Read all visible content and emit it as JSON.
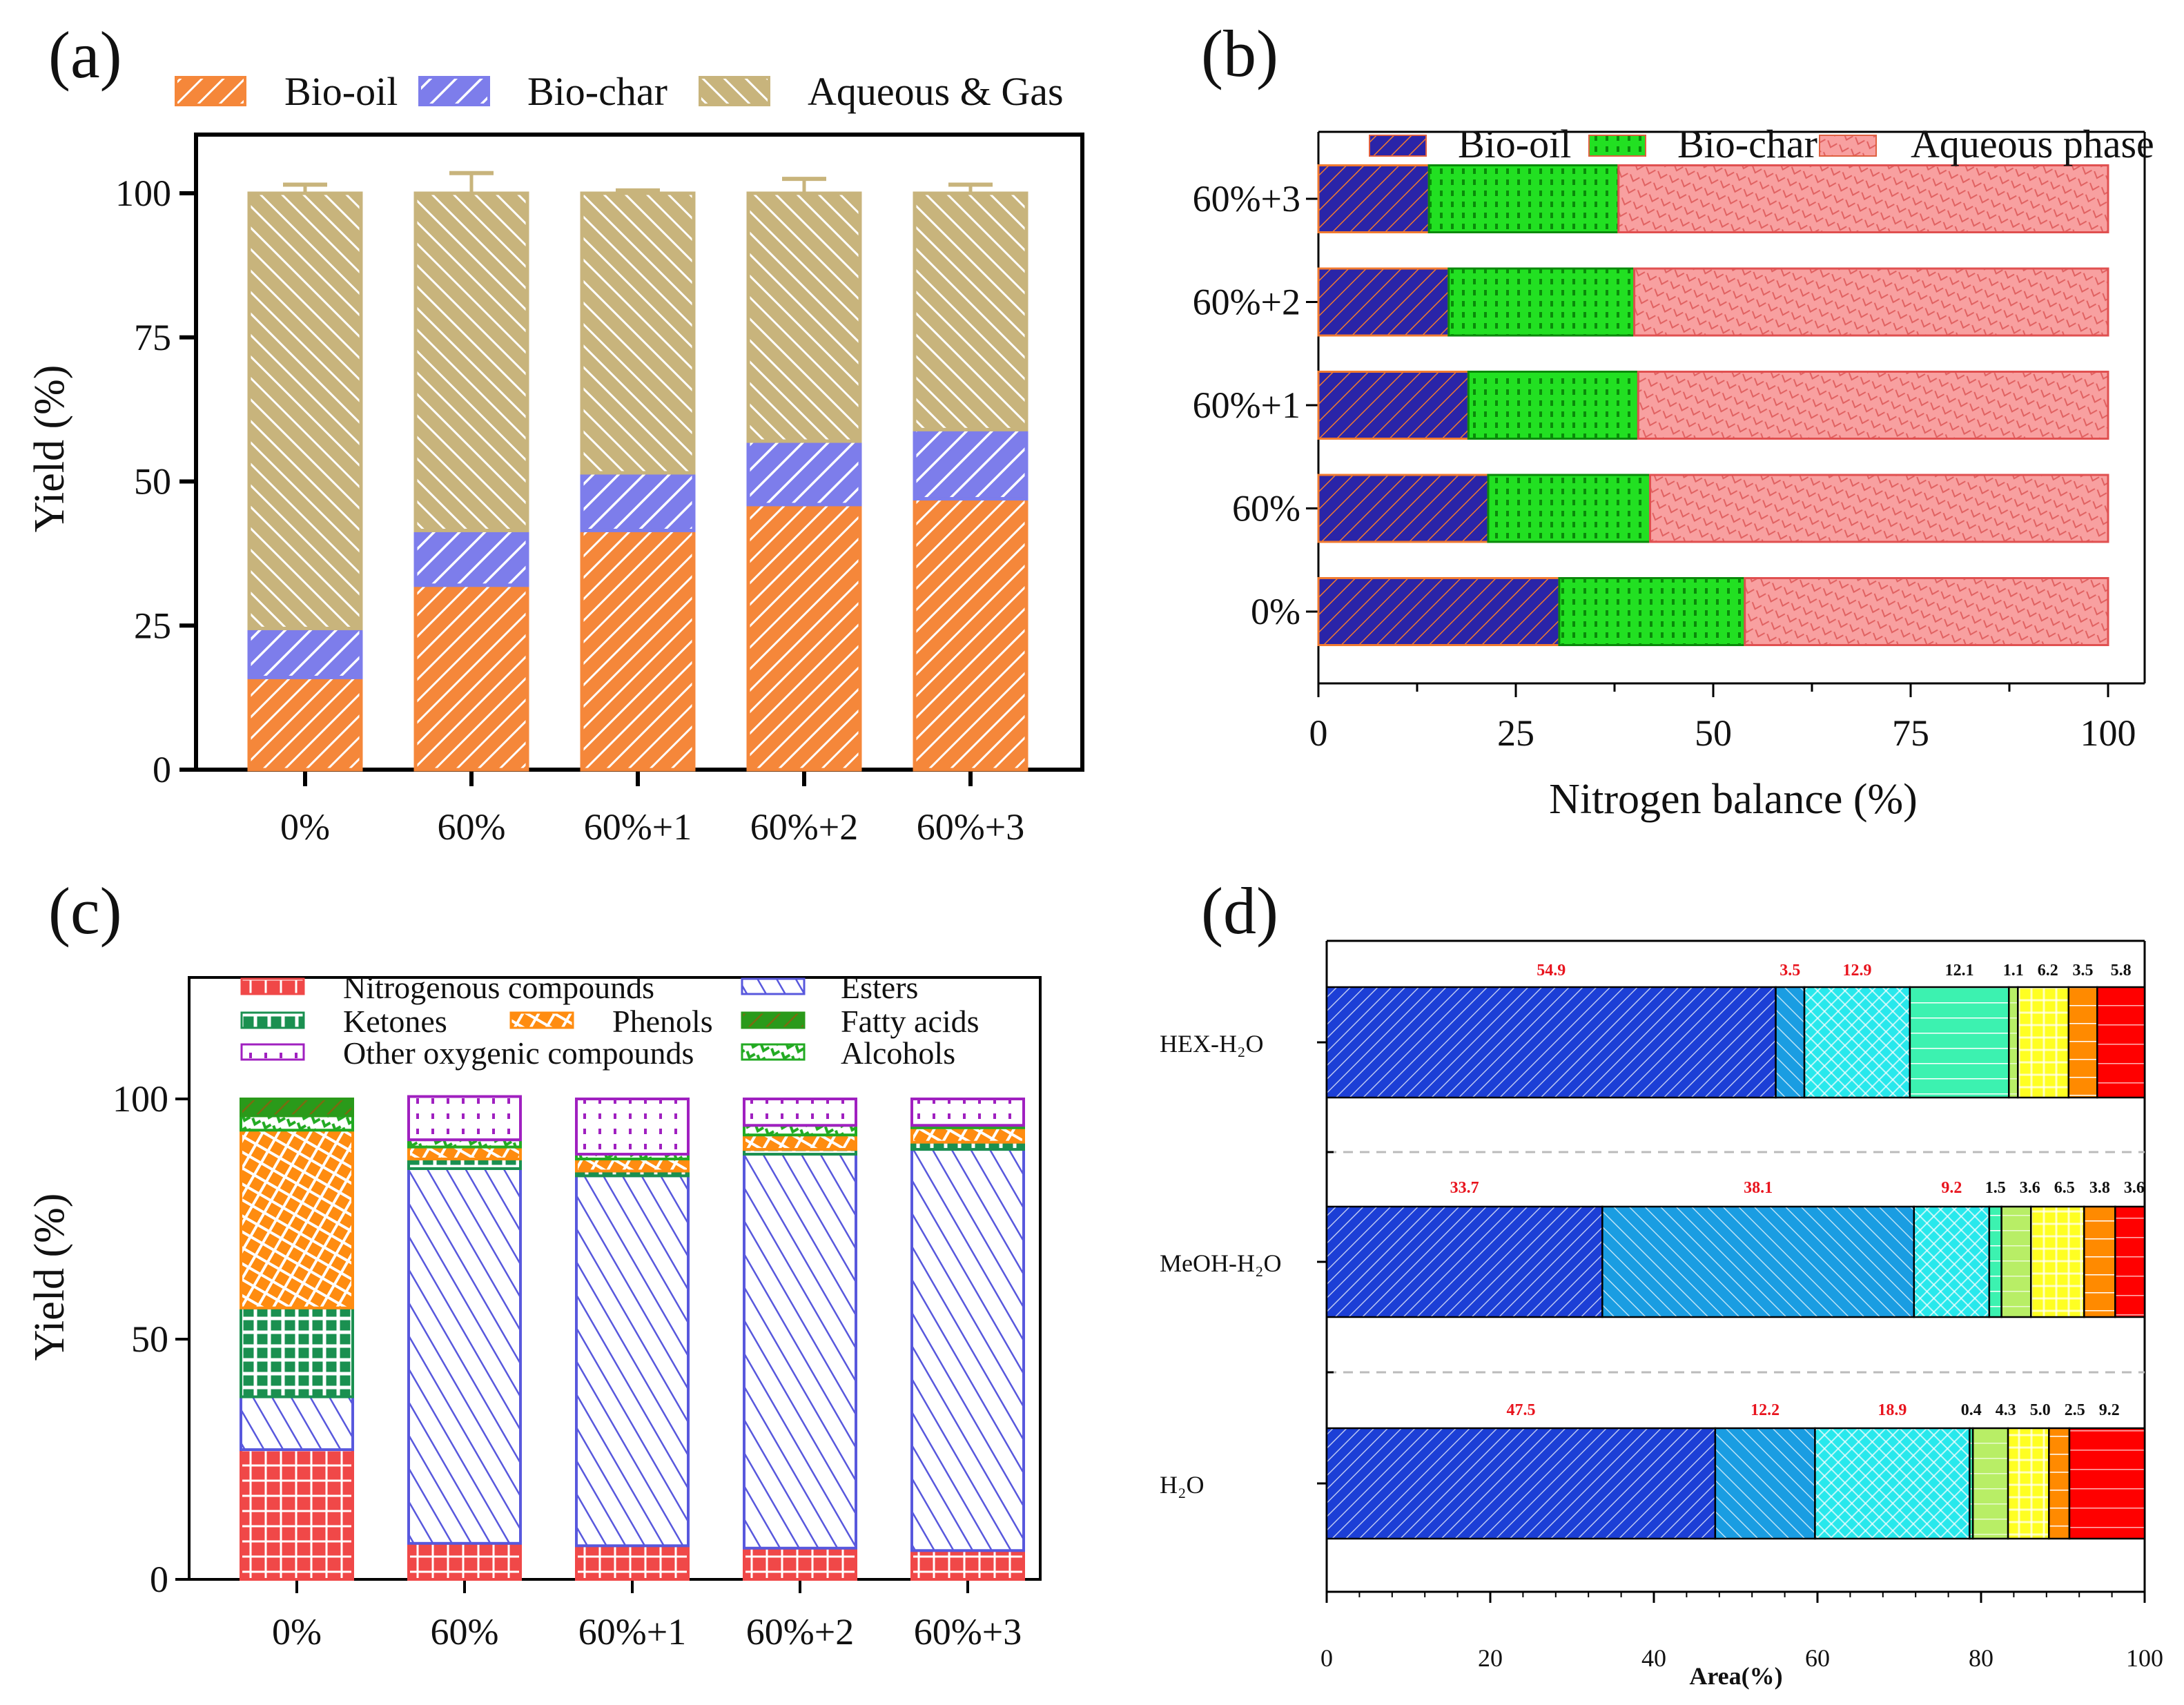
{
  "chart_data": [
    {
      "panel": "(a)",
      "type": "bar",
      "stacked": true,
      "orientation": "vertical",
      "categories": [
        "0%",
        "60%",
        "60%+1",
        "60%+2",
        "60%+3"
      ],
      "series": [
        {
          "name": "Bio-oil",
          "values": [
            16,
            32,
            41.5,
            46,
            47
          ],
          "errors": [
            1,
            3.5,
            0.5,
            0.5,
            0.5
          ],
          "color": "#f5873a"
        },
        {
          "name": "Bio-char",
          "values": [
            8.5,
            9.5,
            10,
            11,
            12
          ],
          "errors": [
            1,
            0.3,
            0.8,
            1.5,
            1
          ],
          "color": "#7d7deb"
        },
        {
          "name": "Aqueous & Gas",
          "values": [
            75.5,
            58.5,
            48.5,
            43,
            41
          ],
          "errors": [
            1.5,
            3.5,
            0.5,
            2.5,
            1.5
          ],
          "color": "#c8b47c"
        }
      ],
      "xlabel": "",
      "ylabel": "Yield (%)",
      "ylim": [
        0,
        100
      ],
      "yticks": [
        "0",
        "25",
        "50",
        "75",
        "100"
      ],
      "legend": "top"
    },
    {
      "panel": "(b)",
      "type": "bar",
      "stacked": true,
      "orientation": "horizontal",
      "categories": [
        "0%",
        "60%",
        "60%+1",
        "60%+2",
        "60%+3"
      ],
      "series": [
        {
          "name": "Bio-oil",
          "values": [
            30.5,
            21.5,
            19,
            16.5,
            14
          ],
          "color": "#2a24a8"
        },
        {
          "name": "Bio-char",
          "values": [
            23.5,
            20.5,
            21.5,
            23.5,
            24
          ],
          "color": "#22e022"
        },
        {
          "name": "Aqueous phase",
          "values": [
            46,
            58,
            59.5,
            60,
            62
          ],
          "color": "#f8a0a0"
        }
      ],
      "xlabel": "Nitrogen balance (%)",
      "ylabel": "",
      "xlim": [
        0,
        100
      ],
      "xticks": [
        "0",
        "25",
        "50",
        "75",
        "100"
      ],
      "legend": "top"
    },
    {
      "panel": "(c)",
      "type": "bar",
      "stacked": true,
      "orientation": "vertical",
      "categories": [
        "0%",
        "60%",
        "60%+1",
        "60%+2",
        "60%+3"
      ],
      "series": [
        {
          "name": "Nitrogenous compounds",
          "values": [
            27,
            7.5,
            7,
            6.5,
            6
          ],
          "color": "#f04848"
        },
        {
          "name": "Esters",
          "values": [
            11,
            78,
            77,
            82,
            83.5
          ],
          "color": "#5858dd"
        },
        {
          "name": "Ketones",
          "values": [
            18.5,
            2,
            1,
            1,
            1.5
          ],
          "color": "#1a9050"
        },
        {
          "name": "Phenols",
          "values": [
            37,
            2.5,
            2.5,
            3,
            3
          ],
          "color": "#ff8c10"
        },
        {
          "name": "Alcohols",
          "values": [
            3,
            1.5,
            1,
            2,
            0.5
          ],
          "color": "#22aa22"
        },
        {
          "name": "Fatty acids",
          "values": [
            3.5,
            0,
            0,
            0,
            0
          ],
          "color": "#2a9a1a"
        },
        {
          "name": "Other oxygenic compounds",
          "values": [
            0,
            9,
            11.5,
            5.5,
            5.5
          ],
          "color": "#a020c0"
        }
      ],
      "xlabel": "",
      "ylabel": "Yield (%)",
      "ylim": [
        0,
        100
      ],
      "yticks": [
        "0",
        "50",
        "100"
      ],
      "legend": "top"
    },
    {
      "panel": "(d)",
      "type": "bar",
      "stacked": true,
      "orientation": "horizontal",
      "categories": [
        "HEX-H₂O",
        "MeOH-H₂O",
        "H₂O"
      ],
      "segment_colors": [
        "#1c3fd6",
        "#1a9de2",
        "#28e8ec",
        "#3cf2b0",
        "#b8ee66",
        "#ffff22",
        "#ff8a00",
        "#ff0000"
      ],
      "rows": [
        {
          "values": [
            54.9,
            3.5,
            12.9,
            12.1,
            1.1,
            6.2,
            3.5,
            5.8
          ],
          "labels": [
            "54.9",
            "3.5",
            "12.9",
            "12.1",
            "1.1",
            "6.2",
            "3.5",
            "5.8"
          ],
          "label_colors": [
            "#e8141e",
            "#e8141e",
            "#e8141e",
            "#111111",
            "#111111",
            "#111111",
            "#111111",
            "#111111"
          ]
        },
        {
          "values": [
            33.7,
            38.1,
            9.2,
            1.5,
            3.6,
            6.5,
            3.8,
            3.6
          ],
          "labels": [
            "33.7",
            "38.1",
            "9.2",
            "1.5",
            "3.6",
            "6.5",
            "3.8",
            "3.6"
          ],
          "label_colors": [
            "#e8141e",
            "#e8141e",
            "#e8141e",
            "#111111",
            "#111111",
            "#111111",
            "#111111",
            "#111111"
          ]
        },
        {
          "values": [
            47.5,
            12.2,
            18.9,
            0.4,
            4.3,
            5.0,
            2.5,
            9.2
          ],
          "labels": [
            "47.5",
            "12.2",
            "18.9",
            "0.4",
            "4.3",
            "5.0",
            "2.5",
            "9.2"
          ],
          "label_colors": [
            "#e8141e",
            "#e8141e",
            "#e8141e",
            "#111111",
            "#111111",
            "#111111",
            "#111111",
            "#111111"
          ]
        }
      ],
      "xlabel": "Area(%)",
      "xlim": [
        0,
        100
      ],
      "xticks": [
        "0",
        "20",
        "40",
        "60",
        "80",
        "100"
      ]
    }
  ]
}
